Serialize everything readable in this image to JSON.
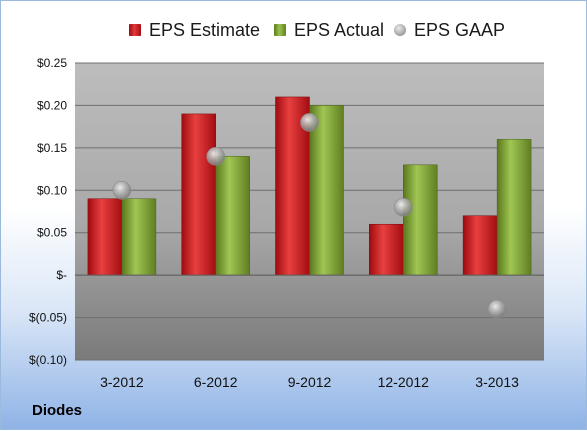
{
  "company": "Diodes",
  "colors": {
    "estimate": "#d8262b",
    "actual": "#8db33a",
    "gaap": "#a6a6a6",
    "plot_bg_top": "#b9b9b9",
    "plot_bg_bottom": "#7a7a7a"
  },
  "chart_data": {
    "type": "bar",
    "categories": [
      "3-2012",
      "6-2012",
      "9-2012",
      "12-2012",
      "3-2013"
    ],
    "series": [
      {
        "name": "EPS Estimate",
        "kind": "bar",
        "color": "#d8262b",
        "values": [
          0.09,
          0.19,
          0.21,
          0.06,
          0.07
        ]
      },
      {
        "name": "EPS Actual",
        "kind": "bar",
        "color": "#8db33a",
        "values": [
          0.09,
          0.14,
          0.2,
          0.13,
          0.16
        ]
      },
      {
        "name": "EPS GAAP",
        "kind": "scatter",
        "color": "#a6a6a6",
        "values": [
          0.1,
          0.14,
          0.18,
          0.08,
          -0.04
        ]
      }
    ],
    "ylim": [
      -0.1,
      0.25
    ],
    "yticks": [
      0.25,
      0.2,
      0.15,
      0.1,
      0.05,
      0,
      -0.05,
      -0.1
    ],
    "ytick_labels": [
      "$0.25",
      "$0.20",
      "$0.15",
      "$0.10",
      "$0.05",
      "$-",
      "$(0.05)",
      "$(0.10)"
    ],
    "grid": true,
    "legend_position": "top"
  }
}
